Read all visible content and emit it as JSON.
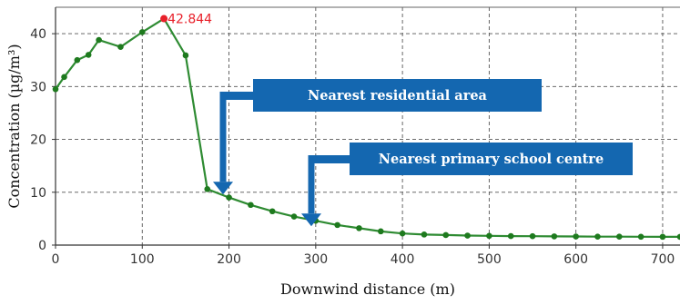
{
  "chart_data": {
    "type": "line",
    "title": "",
    "xlabel": "Downwind distance (m)",
    "ylabel": "Concentration (µg/m³)",
    "xlim": [
      0,
      720
    ],
    "ylim": [
      0,
      45
    ],
    "x_ticks": [
      0,
      100,
      200,
      300,
      400,
      500,
      600,
      700
    ],
    "y_ticks": [
      0,
      10,
      20,
      30,
      40
    ],
    "grid": true,
    "grid_style": "dashed",
    "series": [
      {
        "name": "",
        "color": "#2e8b32",
        "marker_color": "#1e7a1e",
        "x": [
          0,
          10,
          25,
          38,
          50,
          75,
          100,
          125,
          150,
          175,
          200,
          225,
          250,
          275,
          300,
          325,
          350,
          375,
          400,
          425,
          450,
          475,
          500,
          525,
          550,
          575,
          600,
          625,
          650,
          675,
          700,
          720
        ],
        "y": [
          29.5,
          31.8,
          35,
          36,
          38.8,
          37.5,
          40.3,
          42.844,
          35.9,
          10.6,
          9.0,
          7.6,
          6.4,
          5.4,
          4.6,
          3.8,
          3.2,
          2.6,
          2.2,
          2.0,
          1.9,
          1.8,
          1.75,
          1.7,
          1.68,
          1.65,
          1.63,
          1.6,
          1.6,
          1.58,
          1.57,
          1.56
        ]
      }
    ],
    "peak": {
      "x": 125,
      "y": 42.844,
      "label": "42.844",
      "color": "#e8202a"
    },
    "annotations": [
      {
        "text": "Nearest residential area",
        "x": 190,
        "y": 10.6,
        "color": "#1467b0"
      },
      {
        "text": "Nearest primary school centre",
        "x": 295,
        "y": 4.6,
        "color": "#1467b0"
      }
    ]
  }
}
